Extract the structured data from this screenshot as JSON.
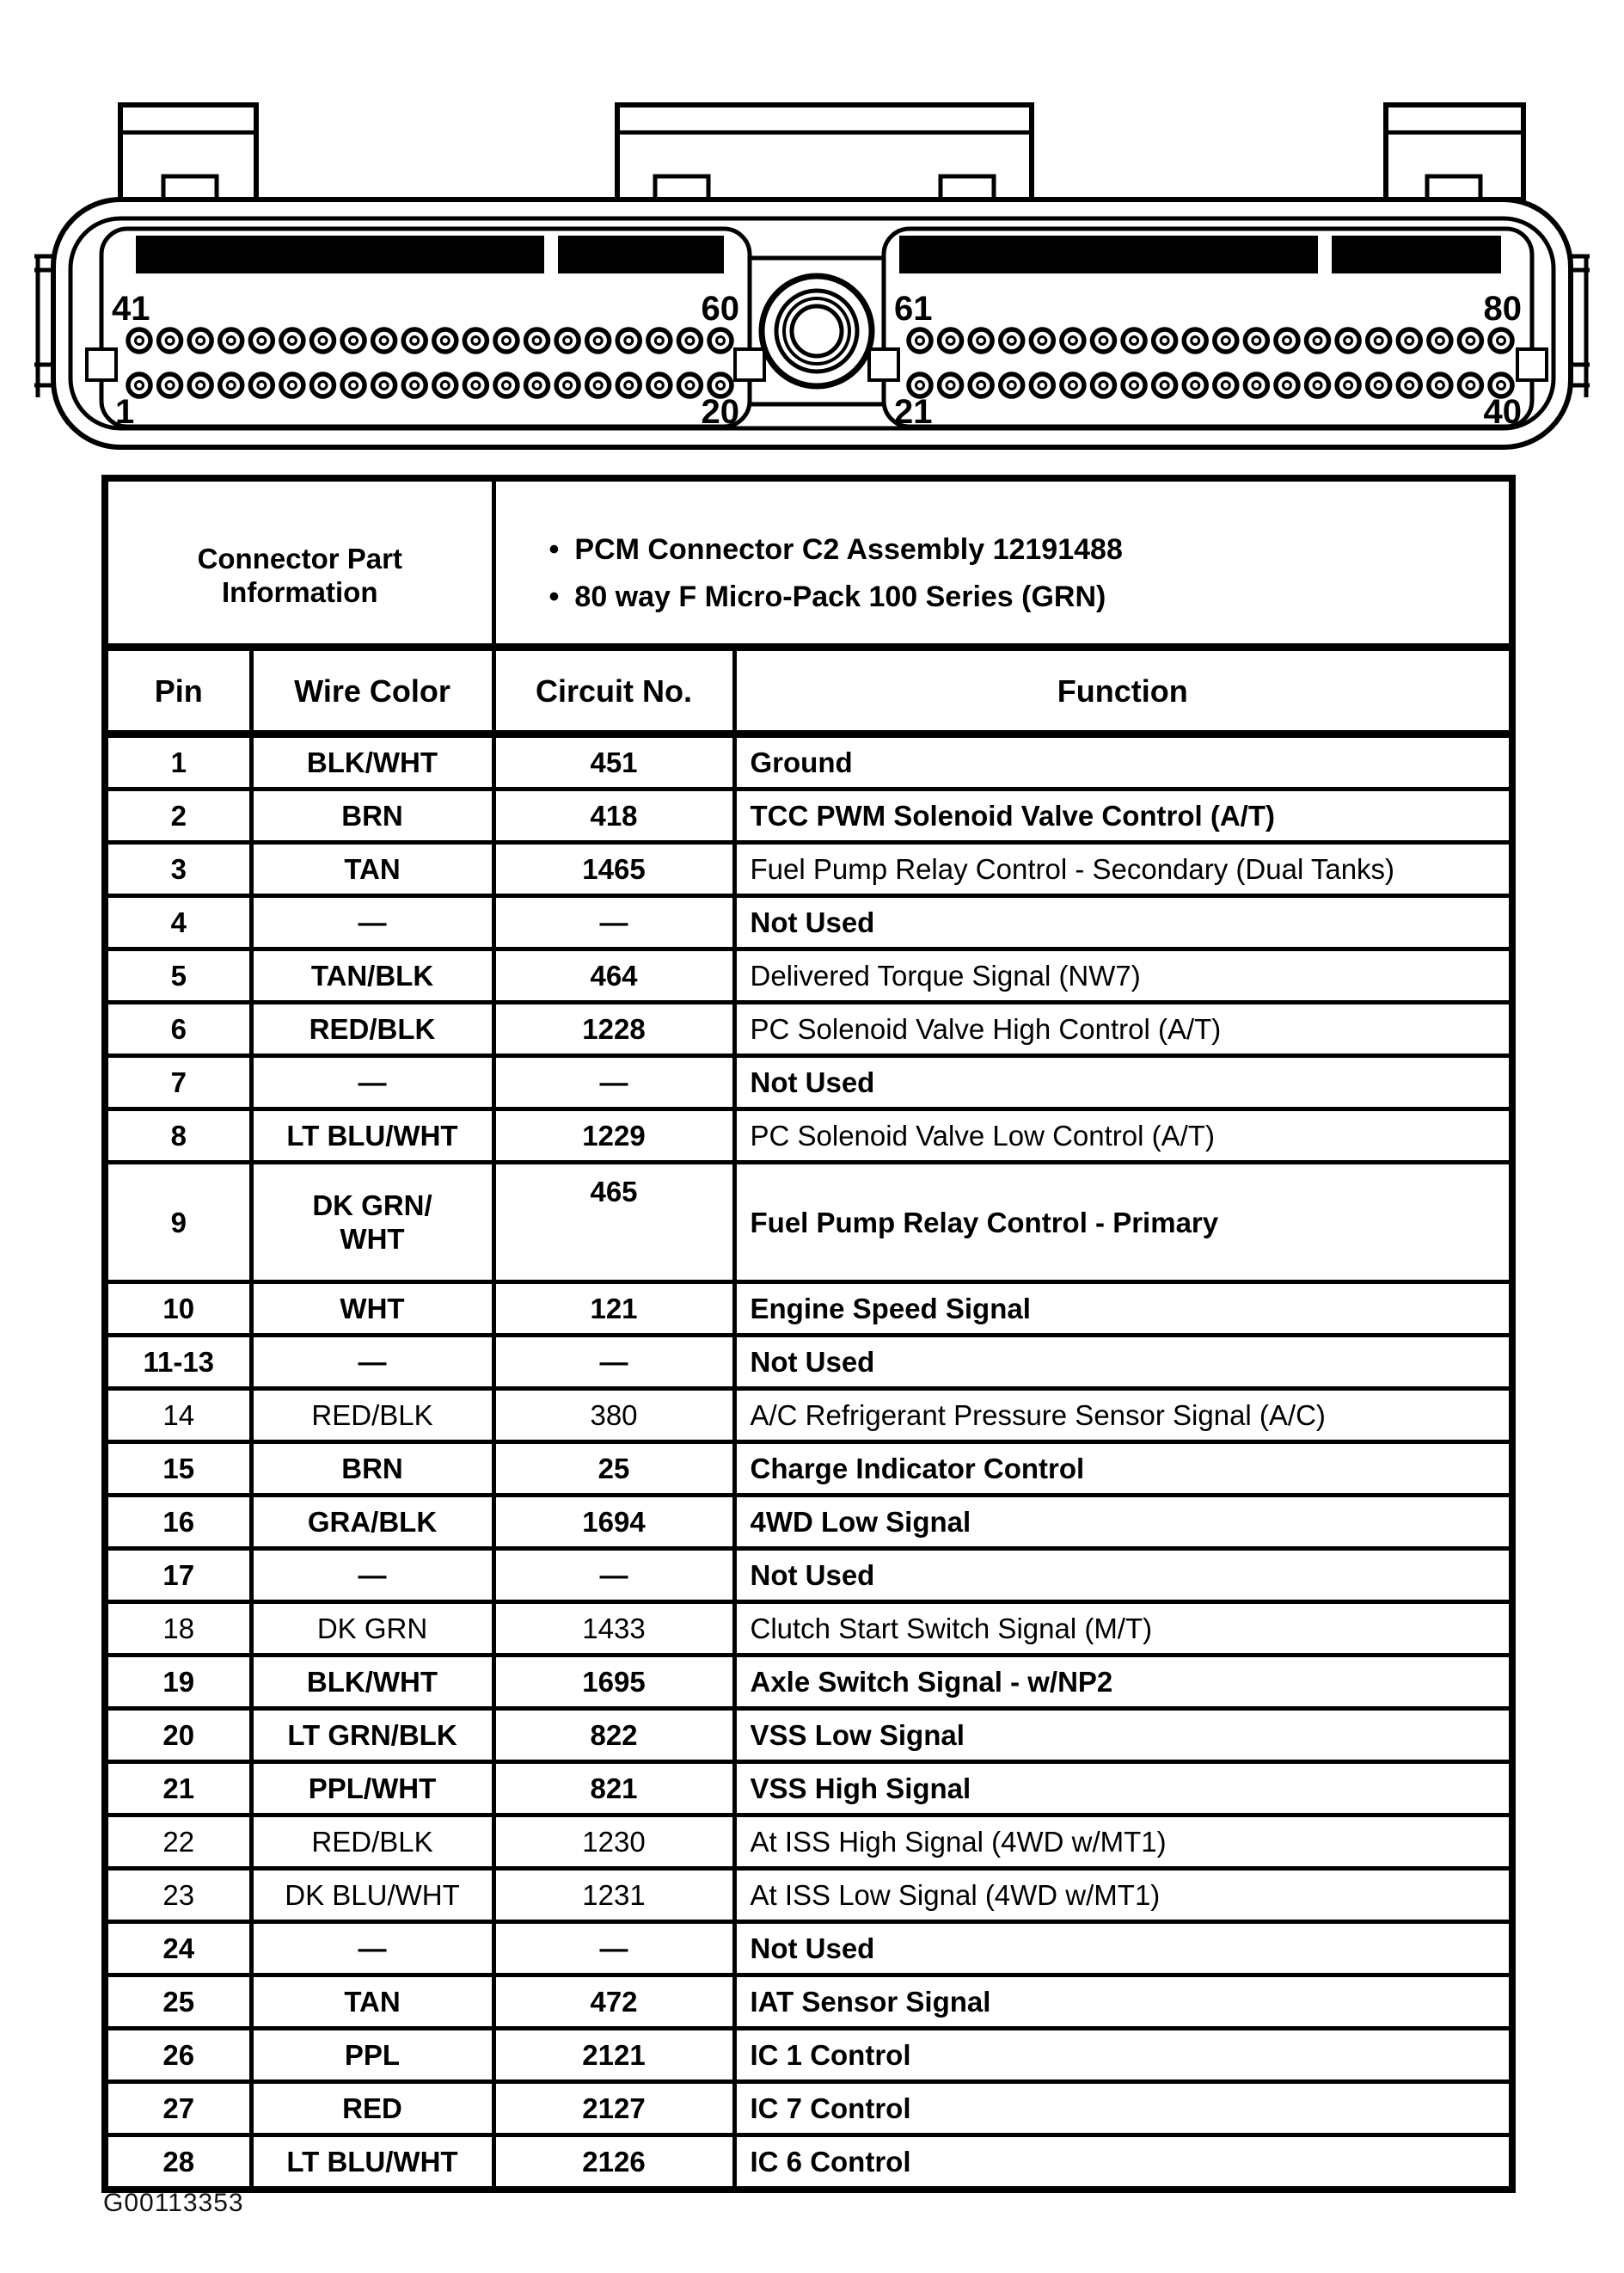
{
  "figure_id": "G00113353",
  "colors": {
    "ink": "#000000",
    "paper": "#ffffff"
  },
  "connector": {
    "pins_per_row": 20,
    "rows_per_field": 2,
    "pin_labels": {
      "left_top_start": "41",
      "left_top_end": "60",
      "left_bottom_start": "1",
      "left_bottom_end": "20",
      "right_top_start": "61",
      "right_top_end": "80",
      "right_bottom_start": "21",
      "right_bottom_end": "40"
    }
  },
  "table": {
    "part_info_header": "Connector Part\nInformation",
    "bullets": [
      "PCM Connector C2 Assembly 12191488",
      "80 way F Micro-Pack 100 Series (GRN)"
    ],
    "columns": [
      "Pin",
      "Wire Color",
      "Circuit No.",
      "Function"
    ],
    "rows": [
      {
        "pin": "1",
        "wire": "BLK/WHT",
        "circuit": "451",
        "function": "Ground"
      },
      {
        "pin": "2",
        "wire": "BRN",
        "circuit": "418",
        "function": "TCC PWM Solenoid Valve Control (A/T)"
      },
      {
        "pin": "3",
        "wire": "TAN",
        "circuit": "1465",
        "function": "Fuel Pump Relay Control - Secondary (Dual Tanks)"
      },
      {
        "pin": "4",
        "wire": "—",
        "circuit": "—",
        "function": "Not Used"
      },
      {
        "pin": "5",
        "wire": "TAN/BLK",
        "circuit": "464",
        "function": "Delivered Torque Signal (NW7)"
      },
      {
        "pin": "6",
        "wire": "RED/BLK",
        "circuit": "1228",
        "function": "PC Solenoid Valve High Control (A/T)"
      },
      {
        "pin": "7",
        "wire": "—",
        "circuit": "—",
        "function": "Not Used"
      },
      {
        "pin": "8",
        "wire": "LT BLU/WHT",
        "circuit": "1229",
        "function": "PC Solenoid Valve Low Control (A/T)"
      },
      {
        "pin": "9",
        "wire": "DK GRN/\nWHT",
        "circuit": "465",
        "function": "Fuel Pump Relay Control - Primary",
        "tall": true
      },
      {
        "pin": "10",
        "wire": "WHT",
        "circuit": "121",
        "function": "Engine Speed Signal"
      },
      {
        "pin": "11-13",
        "wire": "—",
        "circuit": "—",
        "function": "Not Used"
      },
      {
        "pin": "14",
        "wire": "RED/BLK",
        "circuit": "380",
        "function": "A/C Refrigerant Pressure Sensor Signal (A/C)"
      },
      {
        "pin": "15",
        "wire": "BRN",
        "circuit": "25",
        "function": "Charge Indicator Control"
      },
      {
        "pin": "16",
        "wire": "GRA/BLK",
        "circuit": "1694",
        "function": "4WD Low Signal"
      },
      {
        "pin": "17",
        "wire": "—",
        "circuit": "—",
        "function": "Not Used"
      },
      {
        "pin": "18",
        "wire": "DK GRN",
        "circuit": "1433",
        "function": "Clutch Start Switch Signal (M/T)"
      },
      {
        "pin": "19",
        "wire": "BLK/WHT",
        "circuit": "1695",
        "function": "Axle Switch Signal - w/NP2"
      },
      {
        "pin": "20",
        "wire": "LT GRN/BLK",
        "circuit": "822",
        "function": "VSS Low Signal"
      },
      {
        "pin": "21",
        "wire": "PPL/WHT",
        "circuit": "821",
        "function": "VSS High Signal"
      },
      {
        "pin": "22",
        "wire": "RED/BLK",
        "circuit": "1230",
        "function": "At ISS High Signal (4WD w/MT1)"
      },
      {
        "pin": "23",
        "wire": "DK BLU/WHT",
        "circuit": "1231",
        "function": "At ISS Low Signal (4WD w/MT1)"
      },
      {
        "pin": "24",
        "wire": "—",
        "circuit": "—",
        "function": "Not Used"
      },
      {
        "pin": "25",
        "wire": "TAN",
        "circuit": "472",
        "function": "IAT Sensor Signal"
      },
      {
        "pin": "26",
        "wire": "PPL",
        "circuit": "2121",
        "function": "IC 1 Control"
      },
      {
        "pin": "27",
        "wire": "RED",
        "circuit": "2127",
        "function": "IC 7 Control"
      },
      {
        "pin": "28",
        "wire": "LT BLU/WHT",
        "circuit": "2126",
        "function": "IC 6 Control"
      }
    ]
  }
}
